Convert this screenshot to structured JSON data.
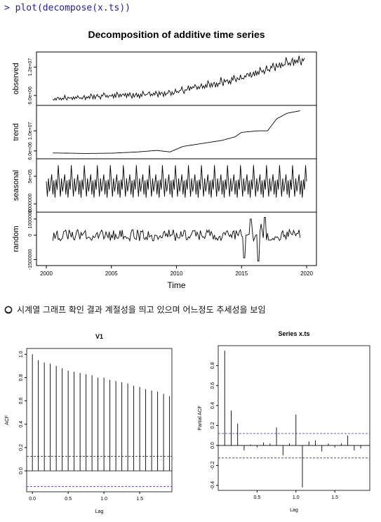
{
  "console": {
    "command": "> plot(decompose(x.ts))"
  },
  "note": {
    "text": "시계열 그래프 확인 결과 계절성을 띄고 있으며 어느정도 추세성을 보임"
  },
  "chart_data": [
    {
      "type": "line",
      "title": "Decomposition of additive time series",
      "xlabel": "Time",
      "x_range": [
        2000,
        2020
      ],
      "x_ticks": [
        2000,
        2005,
        2010,
        2015,
        2020
      ],
      "panels": [
        {
          "name": "observed",
          "ylim": [
            4500000,
            14600000
          ],
          "y_ticks": [
            {
              "v": 6000000,
              "label": "6.0e+06"
            },
            {
              "v": 12000000,
              "label": "1.2e+07"
            }
          ],
          "anchors": [
            [
              2000.5,
              5300000
            ],
            [
              2003,
              5600000
            ],
            [
              2005,
              5900000
            ],
            [
              2008,
              6200000
            ],
            [
              2009.5,
              6400000
            ],
            [
              2011,
              7500000
            ],
            [
              2013,
              8400000
            ],
            [
              2015,
              9700000
            ],
            [
              2016.5,
              11000000
            ],
            [
              2018,
              12400000
            ],
            [
              2019.3,
              13300000
            ],
            [
              2019.8,
              13400000
            ]
          ],
          "amplitude": [
            500000,
            1100000
          ],
          "seasonal": true
        },
        {
          "name": "trend",
          "ylim": [
            5000000,
            14500000
          ],
          "y_ticks": [
            {
              "v": 6000000,
              "label": "6.0e+06"
            },
            {
              "v": 10000000,
              "label": "1.0e+07"
            }
          ],
          "anchors": [
            [
              2000.5,
              5600000
            ],
            [
              2003,
              5500000
            ],
            [
              2005,
              5550000
            ],
            [
              2007,
              5800000
            ],
            [
              2008.5,
              6100000
            ],
            [
              2009.5,
              5800000
            ],
            [
              2010.5,
              6900000
            ],
            [
              2012,
              7500000
            ],
            [
              2013.5,
              8100000
            ],
            [
              2014.5,
              8800000
            ],
            [
              2015,
              9700000
            ],
            [
              2016.3,
              10000000
            ],
            [
              2017,
              10000000
            ],
            [
              2017.7,
              12400000
            ],
            [
              2018.5,
              13500000
            ],
            [
              2019.5,
              14000000
            ]
          ],
          "amplitude": [
            0,
            0
          ],
          "seasonal": false
        },
        {
          "name": "seasonal",
          "ylim": [
            -1300000,
            1300000
          ],
          "y_ticks": [
            {
              "v": -1000000,
              "label": "-1000000"
            },
            {
              "v": 500000,
              "label": "5e+05"
            }
          ],
          "anchors": [
            [
              2000,
              0
            ],
            [
              2020,
              0
            ]
          ],
          "amplitude": [
            1100000,
            1100000
          ],
          "seasonal": true
        },
        {
          "name": "random",
          "ylim": [
            -1700000,
            1250000
          ],
          "y_ticks": [
            {
              "v": -1500000,
              "label": "-1500000"
            },
            {
              "v": 0,
              "label": "0"
            },
            {
              "v": 1000000,
              "label": "1000000"
            }
          ],
          "anchors": [
            [
              2000.5,
              0
            ],
            [
              2019.5,
              0
            ]
          ],
          "amplitude": [
            350000,
            350000
          ],
          "seasonal": false,
          "spikes": [
            [
              2015.2,
              -1400000
            ],
            [
              2015.7,
              1000000
            ],
            [
              2016.3,
              -1600000
            ],
            [
              2016.8,
              1100000
            ],
            [
              2016.5,
              700000
            ]
          ]
        }
      ]
    },
    {
      "type": "bar",
      "title": "V1",
      "xlabel": "Lag",
      "ylabel": "ACF",
      "x_range": [
        -0.08,
        1.95
      ],
      "ylim": [
        -0.18,
        1.05
      ],
      "x_ticks": [
        0.0,
        0.5,
        1.0,
        1.5
      ],
      "y_ticks": [
        0.0,
        0.2,
        0.4,
        0.6,
        0.8,
        1.0
      ],
      "ci": [
        0.125,
        -0.135
      ],
      "lags": [
        0.0,
        0.0833,
        0.1667,
        0.25,
        0.3333,
        0.4167,
        0.5,
        0.5833,
        0.6667,
        0.75,
        0.8333,
        0.9167,
        1.0,
        1.0833,
        1.1667,
        1.25,
        1.3333,
        1.4167,
        1.5,
        1.5833,
        1.6667,
        1.75,
        1.8333,
        1.9167
      ],
      "values": [
        1.0,
        0.95,
        0.93,
        0.92,
        0.9,
        0.88,
        0.86,
        0.85,
        0.84,
        0.83,
        0.82,
        0.8,
        0.8,
        0.78,
        0.77,
        0.76,
        0.75,
        0.73,
        0.72,
        0.7,
        0.69,
        0.68,
        0.66,
        0.64
      ]
    },
    {
      "type": "bar",
      "title": "Series x.ts",
      "xlabel": "Lag",
      "ylabel": "Partial ACF",
      "x_range": [
        0.0,
        1.95
      ],
      "ylim": [
        -0.45,
        1.0
      ],
      "x_ticks": [
        0.5,
        1.0,
        1.5
      ],
      "y_ticks": [
        -0.4,
        -0.2,
        0.0,
        0.2,
        0.4,
        0.6,
        0.8
      ],
      "ci": [
        0.12,
        -0.125
      ],
      "lags": [
        0.0833,
        0.1667,
        0.25,
        0.3333,
        0.4167,
        0.5,
        0.5833,
        0.6667,
        0.75,
        0.8333,
        0.9167,
        1.0,
        1.0833,
        1.1667,
        1.25,
        1.3333,
        1.4167,
        1.5,
        1.5833,
        1.6667,
        1.75,
        1.8333
      ],
      "values": [
        0.95,
        0.35,
        0.22,
        -0.05,
        0.01,
        -0.02,
        0.03,
        0.02,
        0.18,
        -0.1,
        0.02,
        0.31,
        -0.42,
        0.04,
        0.05,
        -0.06,
        0.02,
        -0.02,
        0.02,
        0.1,
        -0.05,
        -0.03
      ]
    }
  ]
}
